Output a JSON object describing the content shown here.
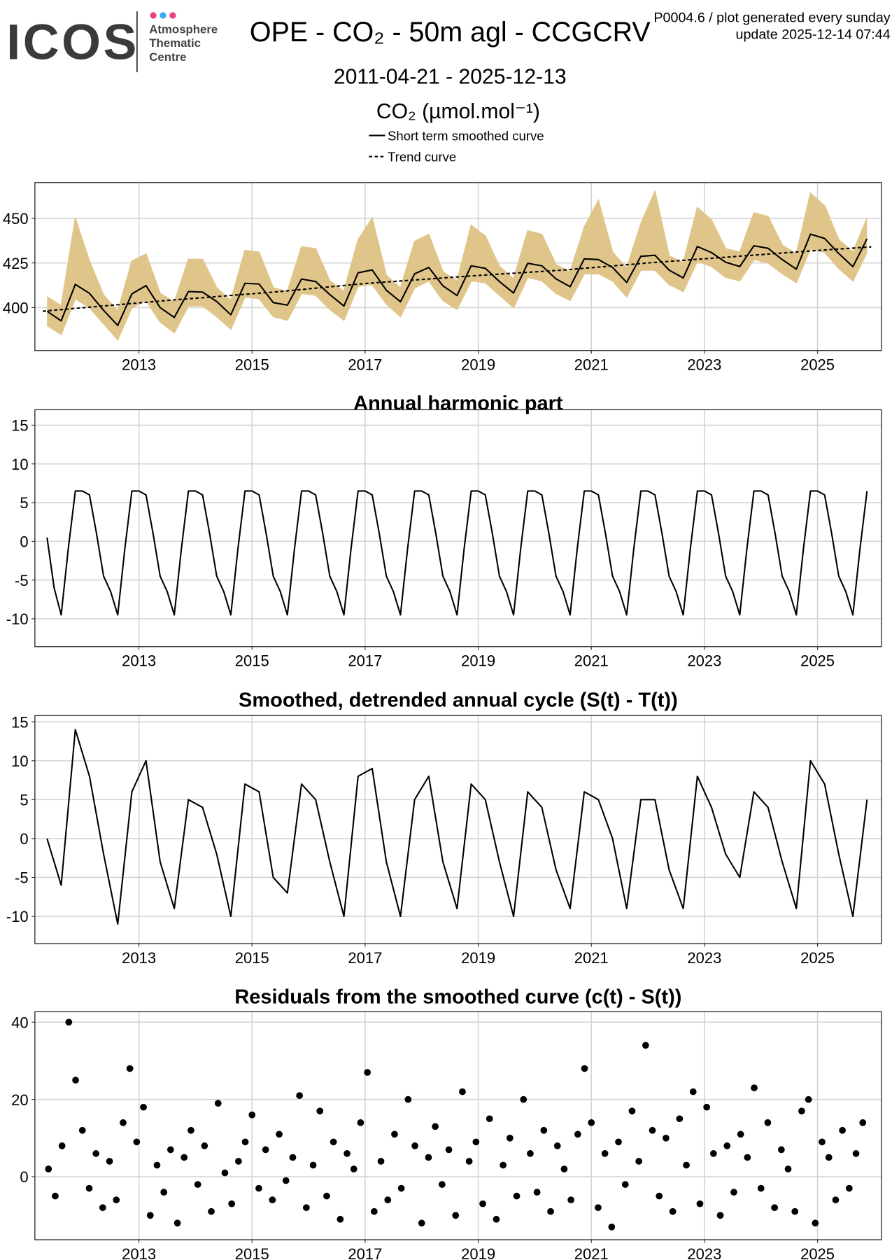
{
  "header": {
    "logo": "ICOS",
    "org": [
      "Atmosphere",
      "Thematic",
      "Centre"
    ],
    "title": "OPE - CO₂ - 50m agl - CCGCRV",
    "note": "P0004.6 / plot generated every sunday",
    "update": "update  2025-12-14 07:44",
    "period": "2011-04-21 - 2025-12-13"
  },
  "chart_data": [
    {
      "type": "line",
      "title": "CO₂ (µmol.mol⁻¹)",
      "grid": true,
      "xlim": [
        2011.16,
        2026.13
      ],
      "ylim": [
        376,
        470
      ],
      "xticks": [
        2013,
        2015,
        2017,
        2019,
        2021,
        2023,
        2025
      ],
      "yticks": [
        400,
        425,
        450
      ],
      "x": [
        2011.375,
        2011.625,
        2011.875,
        2012.125,
        2012.375,
        2012.625,
        2012.875,
        2013.125,
        2013.375,
        2013.625,
        2013.875,
        2014.125,
        2014.375,
        2014.625,
        2014.875,
        2015.125,
        2015.375,
        2015.625,
        2015.875,
        2016.125,
        2016.375,
        2016.625,
        2016.875,
        2017.125,
        2017.375,
        2017.625,
        2017.875,
        2018.125,
        2018.375,
        2018.625,
        2018.875,
        2019.125,
        2019.375,
        2019.625,
        2019.875,
        2020.125,
        2020.375,
        2020.625,
        2020.875,
        2021.125,
        2021.375,
        2021.625,
        2021.875,
        2022.125,
        2022.375,
        2022.625,
        2022.875,
        2023.125,
        2023.375,
        2023.625,
        2023.875,
        2024.125,
        2024.375,
        2024.625,
        2024.875,
        2025.125,
        2025.375,
        2025.625,
        2025.875
      ],
      "band": {
        "color": "#e0c58a",
        "low": [
          390,
          385,
          405,
          400,
          391,
          382,
          400,
          404,
          392,
          386,
          401,
          401,
          395,
          388,
          406,
          405,
          395,
          393,
          408,
          407,
          399,
          393,
          412,
          413,
          402,
          395,
          411,
          415,
          404,
          399,
          415,
          414,
          407,
          400,
          417,
          415,
          408,
          404,
          419,
          419,
          415,
          406,
          421,
          421,
          413,
          409,
          426,
          423,
          417,
          415,
          427,
          425,
          419,
          414,
          433,
          431,
          422,
          415,
          431
        ],
        "high": [
          406,
          401,
          450,
          426,
          407,
          398,
          426,
          430,
          408,
          403,
          427,
          427,
          411,
          404,
          432,
          431,
          411,
          409,
          434,
          433,
          415,
          409,
          438,
          450,
          418,
          411,
          437,
          441,
          420,
          415,
          446,
          440,
          423,
          416,
          443,
          441,
          424,
          420,
          445,
          460,
          431,
          422,
          447,
          465,
          429,
          425,
          456,
          449,
          433,
          431,
          453,
          451,
          435,
          430,
          464,
          457,
          438,
          431,
          450
        ]
      },
      "series": [
        {
          "name": "Short term smoothed curve",
          "color": "#000000",
          "dash": false,
          "values": [
            398,
            392.6,
            413,
            408,
            398.5,
            390,
            407.7,
            412.3,
            400,
            394.5,
            409,
            408.7,
            403.4,
            396,
            413.6,
            413.2,
            402.8,
            401.4,
            416,
            414.6,
            407.3,
            400.9,
            419.5,
            421.1,
            409.7,
            403.3,
            418.9,
            422.5,
            412.2,
            406.8,
            423.4,
            422,
            414.6,
            408.2,
            424.8,
            423.4,
            416.1,
            411.7,
            427.3,
            426.9,
            422.5,
            414.1,
            428.7,
            429.3,
            421,
            416.6,
            434.2,
            430.8,
            425.4,
            423,
            434.6,
            433.2,
            426.9,
            421.5,
            441.1,
            438.7,
            430.3,
            422.9,
            438.5
          ]
        },
        {
          "name": "Trend curve",
          "color": "#000000",
          "dash": true,
          "x": [
            2011.3,
            2013.5,
            2015.5,
            2017,
            2019,
            2020.5,
            2022,
            2023.5,
            2025,
            2025.95
          ],
          "values": [
            398,
            404,
            409,
            413.5,
            418,
            421,
            425,
            428.5,
            432,
            434
          ]
        }
      ]
    },
    {
      "type": "line",
      "title": "Annual harmonic part",
      "grid": true,
      "xlim": [
        2011.16,
        2026.13
      ],
      "ylim": [
        -13.6,
        17
      ],
      "xticks": [
        2013,
        2015,
        2017,
        2019,
        2021,
        2023,
        2025
      ],
      "yticks": [
        -10,
        -5,
        0,
        5,
        10,
        15
      ],
      "x": [
        2011.375,
        2011.5,
        2011.625,
        2011.75,
        2011.875,
        2012,
        2012.125,
        2012.25,
        2012.375,
        2012.5,
        2012.625,
        2012.75,
        2012.875,
        2013,
        2013.125,
        2013.25,
        2013.375,
        2013.5,
        2013.625,
        2013.75,
        2013.875,
        2014,
        2014.125,
        2014.25,
        2014.375,
        2014.5,
        2014.625,
        2014.75,
        2014.875,
        2015,
        2015.125,
        2015.25,
        2015.375,
        2015.5,
        2015.625,
        2015.75,
        2015.875,
        2016,
        2016.125,
        2016.25,
        2016.375,
        2016.5,
        2016.625,
        2016.75,
        2016.875,
        2017,
        2017.125,
        2017.25,
        2017.375,
        2017.5,
        2017.625,
        2017.75,
        2017.875,
        2018,
        2018.125,
        2018.25,
        2018.375,
        2018.5,
        2018.625,
        2018.75,
        2018.875,
        2019,
        2019.125,
        2019.25,
        2019.375,
        2019.5,
        2019.625,
        2019.75,
        2019.875,
        2020,
        2020.125,
        2020.25,
        2020.375,
        2020.5,
        2020.625,
        2020.75,
        2020.875,
        2021,
        2021.125,
        2021.25,
        2021.375,
        2021.5,
        2021.625,
        2021.75,
        2021.875,
        2022,
        2022.125,
        2022.25,
        2022.375,
        2022.5,
        2022.625,
        2022.75,
        2022.875,
        2023,
        2023.125,
        2023.25,
        2023.375,
        2023.5,
        2023.625,
        2023.75,
        2023.875,
        2024,
        2024.125,
        2024.25,
        2024.375,
        2024.5,
        2024.625,
        2024.75,
        2024.875,
        2025,
        2025.125,
        2025.25,
        2025.375,
        2025.5,
        2025.625,
        2025.75,
        2025.875
      ],
      "series": [
        {
          "color": "#000000",
          "dash": false,
          "values": [
            0.5,
            -6,
            -9.5,
            -1,
            6.5,
            6.5,
            6,
            1,
            -4.5,
            -6.5,
            -9.5,
            -1,
            6.5,
            6.5,
            6,
            1,
            -4.5,
            -6.5,
            -9.5,
            -1,
            6.5,
            6.5,
            6,
            1,
            -4.5,
            -6.5,
            -9.5,
            -1,
            6.5,
            6.5,
            6,
            1,
            -4.5,
            -6.5,
            -9.5,
            -1,
            6.5,
            6.5,
            6,
            1,
            -4.5,
            -6.5,
            -9.5,
            -1,
            6.5,
            6.5,
            6,
            1,
            -4.5,
            -6.5,
            -9.5,
            -1,
            6.5,
            6.5,
            6,
            1,
            -4.5,
            -6.5,
            -9.5,
            -1,
            6.5,
            6.5,
            6,
            1,
            -4.5,
            -6.5,
            -9.5,
            -1,
            6.5,
            6.5,
            6,
            1,
            -4.5,
            -6.5,
            -9.5,
            -1,
            6.5,
            6.5,
            6,
            1,
            -4.5,
            -6.5,
            -9.5,
            -1,
            6.5,
            6.5,
            6,
            1,
            -4.5,
            -6.5,
            -9.5,
            -1,
            6.5,
            6.5,
            6,
            1,
            -4.5,
            -6.5,
            -9.5,
            -1,
            6.5,
            6.5,
            6,
            1,
            -4.5,
            -6.5,
            -9.5,
            -1,
            6.5,
            6.5,
            6,
            1,
            -4.5,
            -6.5,
            -9.5,
            -1,
            6.5
          ]
        }
      ]
    },
    {
      "type": "line",
      "title": "Smoothed, detrended annual cycle (S(t) - T(t))",
      "grid": true,
      "xlim": [
        2011.16,
        2026.13
      ],
      "ylim": [
        -13.5,
        15.8
      ],
      "xticks": [
        2013,
        2015,
        2017,
        2019,
        2021,
        2023,
        2025
      ],
      "yticks": [
        -10,
        -5,
        0,
        5,
        10,
        15
      ],
      "x": [
        2011.375,
        2011.625,
        2011.875,
        2012.125,
        2012.375,
        2012.625,
        2012.875,
        2013.125,
        2013.375,
        2013.625,
        2013.875,
        2014.125,
        2014.375,
        2014.625,
        2014.875,
        2015.125,
        2015.375,
        2015.625,
        2015.875,
        2016.125,
        2016.375,
        2016.625,
        2016.875,
        2017.125,
        2017.375,
        2017.625,
        2017.875,
        2018.125,
        2018.375,
        2018.625,
        2018.875,
        2019.125,
        2019.375,
        2019.625,
        2019.875,
        2020.125,
        2020.375,
        2020.625,
        2020.875,
        2021.125,
        2021.375,
        2021.625,
        2021.875,
        2022.125,
        2022.375,
        2022.625,
        2022.875,
        2023.125,
        2023.375,
        2023.625,
        2023.875,
        2024.125,
        2024.375,
        2024.625,
        2024.875,
        2025.125,
        2025.375,
        2025.625,
        2025.875
      ],
      "series": [
        {
          "color": "#000000",
          "dash": false,
          "values": [
            0,
            -6,
            14,
            8,
            -2,
            -11,
            6,
            10,
            -3,
            -9,
            5,
            4,
            -2,
            -10,
            7,
            6,
            -5,
            -7,
            7,
            5,
            -3,
            -10,
            8,
            9,
            -3,
            -10,
            5,
            8,
            -3,
            -9,
            7,
            5,
            -3,
            -10,
            6,
            4,
            -4,
            -9,
            6,
            5,
            0,
            -9,
            5,
            5,
            -4,
            -9,
            8,
            4,
            -2,
            -5,
            6,
            4,
            -3,
            -9,
            10,
            7,
            -2,
            -10,
            5
          ]
        }
      ]
    },
    {
      "type": "scatter",
      "title": "Residuals from the smoothed curve (c(t) - S(t))",
      "grid": true,
      "xlim": [
        2011.16,
        2026.13
      ],
      "ylim": [
        -16.3,
        42.7
      ],
      "xticks": [
        2013,
        2015,
        2017,
        2019,
        2021,
        2023,
        2025
      ],
      "yticks": [
        0,
        20,
        40
      ],
      "x": [
        2011.4,
        2011.52,
        2011.64,
        2011.76,
        2011.88,
        2012,
        2012.12,
        2012.24,
        2012.36,
        2012.48,
        2012.6,
        2012.72,
        2012.84,
        2012.96,
        2013.08,
        2013.2,
        2013.32,
        2013.44,
        2013.56,
        2013.68,
        2013.8,
        2013.92,
        2014.04,
        2014.16,
        2014.28,
        2014.4,
        2014.52,
        2014.64,
        2014.76,
        2014.88,
        2015,
        2015.12,
        2015.24,
        2015.36,
        2015.48,
        2015.6,
        2015.72,
        2015.84,
        2015.96,
        2016.08,
        2016.2,
        2016.32,
        2016.44,
        2016.56,
        2016.68,
        2016.8,
        2016.92,
        2017.04,
        2017.16,
        2017.28,
        2017.4,
        2017.52,
        2017.64,
        2017.76,
        2017.88,
        2018,
        2018.12,
        2018.24,
        2018.36,
        2018.48,
        2018.6,
        2018.72,
        2018.84,
        2018.96,
        2019.08,
        2019.2,
        2019.32,
        2019.44,
        2019.56,
        2019.68,
        2019.8,
        2019.92,
        2020.04,
        2020.16,
        2020.28,
        2020.4,
        2020.52,
        2020.64,
        2020.76,
        2020.88,
        2021,
        2021.12,
        2021.24,
        2021.36,
        2021.48,
        2021.6,
        2021.72,
        2021.84,
        2021.96,
        2022.08,
        2022.2,
        2022.32,
        2022.44,
        2022.56,
        2022.68,
        2022.8,
        2022.92,
        2023.04,
        2023.16,
        2023.28,
        2023.4,
        2023.52,
        2023.64,
        2023.76,
        2023.88,
        2024,
        2024.12,
        2024.24,
        2024.36,
        2024.48,
        2024.6,
        2024.72,
        2024.84,
        2024.96,
        2025.08,
        2025.2,
        2025.32,
        2025.44,
        2025.56,
        2025.68,
        2025.8
      ],
      "series": [
        {
          "color": "#000000",
          "values": [
            2,
            -5,
            8,
            40,
            25,
            12,
            -3,
            6,
            -8,
            4,
            -6,
            14,
            28,
            9,
            18,
            -10,
            3,
            -4,
            7,
            -12,
            5,
            12,
            -2,
            8,
            -9,
            19,
            1,
            -7,
            4,
            9,
            16,
            -3,
            7,
            -6,
            11,
            -1,
            5,
            21,
            -8,
            3,
            17,
            -5,
            9,
            -11,
            6,
            2,
            14,
            27,
            -9,
            4,
            -6,
            11,
            -3,
            20,
            8,
            -12,
            5,
            13,
            -2,
            7,
            -10,
            22,
            4,
            9,
            -7,
            15,
            -11,
            3,
            10,
            -5,
            20,
            6,
            -4,
            12,
            -9,
            8,
            2,
            -6,
            11,
            28,
            14,
            -8,
            6,
            -13,
            9,
            -2,
            17,
            4,
            34,
            12,
            -5,
            10,
            -9,
            15,
            3,
            22,
            -7,
            18,
            6,
            -10,
            8,
            -4,
            11,
            5,
            23,
            -3,
            14,
            -8,
            7,
            2,
            -9,
            17,
            20,
            -12,
            9,
            5,
            -6,
            12,
            -3,
            6,
            14
          ]
        }
      ]
    }
  ]
}
